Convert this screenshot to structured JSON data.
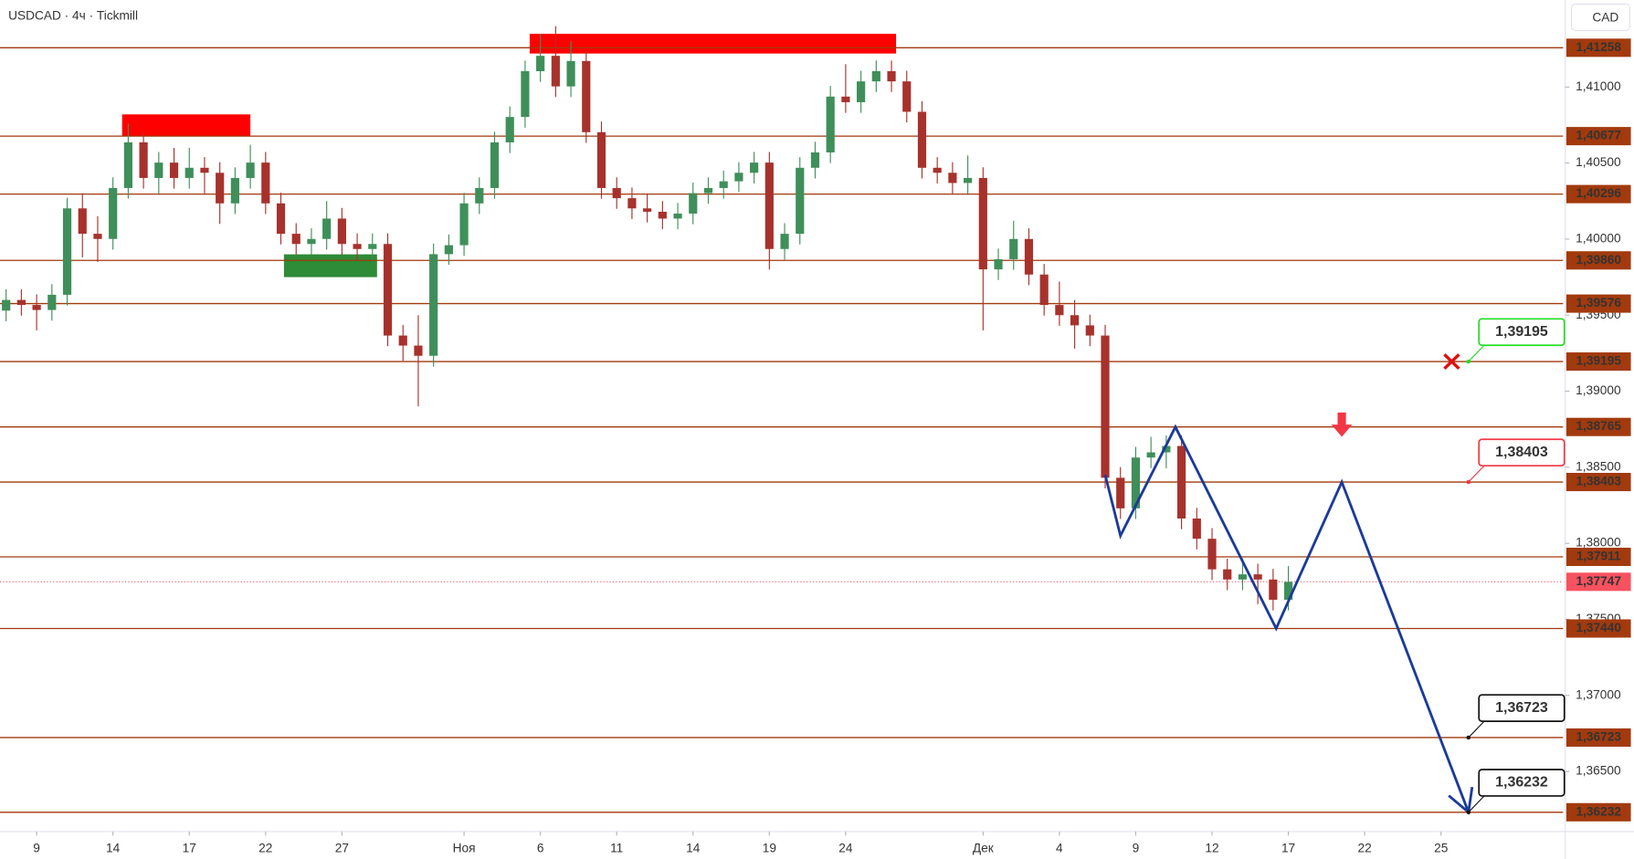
{
  "chart_data": {
    "type": "candlestick",
    "title": "USDCAD · 4ч · Tickmill",
    "currency": "CAD",
    "grid": false,
    "up_color": "#3f8f5a",
    "down_color": "#a7322c",
    "level_color": "#a23a0d",
    "xlim": [
      -0.4,
      102
    ],
    "ylim": [
      1.36105,
      1.41572
    ],
    "xticks": [
      {
        "value": 2,
        "label": "9"
      },
      {
        "value": 7,
        "label": "14"
      },
      {
        "value": 12,
        "label": "17"
      },
      {
        "value": 17,
        "label": "22"
      },
      {
        "value": 22,
        "label": "27"
      },
      {
        "value": 30,
        "label": "Ноя"
      },
      {
        "value": 35,
        "label": "6"
      },
      {
        "value": 40,
        "label": "11"
      },
      {
        "value": 45,
        "label": "14"
      },
      {
        "value": 50,
        "label": "19"
      },
      {
        "value": 55,
        "label": "24"
      },
      {
        "value": 64,
        "label": "Дек"
      },
      {
        "value": 69,
        "label": "4"
      },
      {
        "value": 74,
        "label": "9"
      },
      {
        "value": 79,
        "label": "12"
      },
      {
        "value": 84,
        "label": "17"
      },
      {
        "value": 89,
        "label": "22"
      },
      {
        "value": 94,
        "label": "25"
      }
    ],
    "yticks": [
      {
        "value": 1.365,
        "label": "1,36500"
      },
      {
        "value": 1.37,
        "label": "1,37000"
      },
      {
        "value": 1.375,
        "label": "1,37500"
      },
      {
        "value": 1.38,
        "label": "1,38000"
      },
      {
        "value": 1.385,
        "label": "1,38500"
      },
      {
        "value": 1.39,
        "label": "1,39000"
      },
      {
        "value": 1.395,
        "label": "1,39500"
      },
      {
        "value": 1.4,
        "label": "1,40000"
      },
      {
        "value": 1.405,
        "label": "1,40500"
      },
      {
        "value": 1.41,
        "label": "1,41000"
      }
    ],
    "open": [
      1.3953,
      1.396,
      1.39567,
      1.39534,
      1.39634,
      1.40202,
      1.40035,
      1.40001,
      1.40336,
      1.40636,
      1.40402,
      1.40503,
      1.40402,
      1.40469,
      1.40436,
      1.40235,
      1.40402,
      1.40503,
      1.40235,
      1.40035,
      1.39968,
      1.40001,
      1.40135,
      1.39968,
      1.39935,
      1.39968,
      1.39366,
      1.393,
      1.39233,
      1.39901,
      1.3996,
      1.40235,
      1.40336,
      1.40636,
      1.40803,
      1.41104,
      1.41205,
      1.41004,
      1.41171,
      1.40703,
      1.40336,
      1.40269,
      1.40202,
      1.4018,
      1.40135,
      1.40168,
      1.40302,
      1.40336,
      1.4038,
      1.40436,
      1.40503,
      1.39935,
      1.40035,
      1.40469,
      1.4057,
      1.40937,
      1.409,
      1.41037,
      1.41104,
      1.41037,
      1.40837,
      1.40469,
      1.40436,
      1.40369,
      1.40402,
      1.39801,
      1.39868,
      1.40001,
      1.39767,
      1.39567,
      1.395,
      1.39433,
      1.39366,
      1.38431,
      1.3823,
      1.38564,
      1.38598,
      1.3864,
      1.38163,
      1.3803,
      1.37829,
      1.37762,
      1.37796,
      1.37762,
      1.37629
    ],
    "high": [
      1.3967,
      1.3967,
      1.39637,
      1.39704,
      1.40272,
      1.40302,
      1.4015,
      1.40406,
      1.4076,
      1.40706,
      1.40573,
      1.406,
      1.406,
      1.40539,
      1.40506,
      1.40472,
      1.4062,
      1.40573,
      1.40305,
      1.40105,
      1.40071,
      1.4025,
      1.40205,
      1.40038,
      1.40038,
      1.40038,
      1.39436,
      1.395,
      1.39971,
      1.4003,
      1.40305,
      1.40406,
      1.40706,
      1.40873,
      1.41174,
      1.4135,
      1.414,
      1.413,
      1.41241,
      1.40773,
      1.40406,
      1.40339,
      1.403,
      1.4025,
      1.40238,
      1.40372,
      1.40406,
      1.4045,
      1.40506,
      1.40573,
      1.40573,
      1.40105,
      1.40539,
      1.4064,
      1.41007,
      1.4115,
      1.41107,
      1.41174,
      1.41174,
      1.41107,
      1.40907,
      1.40539,
      1.40506,
      1.4055,
      1.40472,
      1.39938,
      1.4012,
      1.40071,
      1.39837,
      1.3972,
      1.396,
      1.39503,
      1.39436,
      1.38501,
      1.38634,
      1.387,
      1.3871,
      1.3871,
      1.38233,
      1.381,
      1.37899,
      1.379,
      1.37866,
      1.37832,
      1.3785
    ],
    "low": [
      1.3946,
      1.39497,
      1.394,
      1.39464,
      1.39564,
      1.3988,
      1.3985,
      1.39931,
      1.40266,
      1.40332,
      1.403,
      1.40332,
      1.40332,
      1.403,
      1.401,
      1.40165,
      1.40332,
      1.40165,
      1.39965,
      1.39898,
      1.39898,
      1.39931,
      1.39898,
      1.39865,
      1.39865,
      1.39296,
      1.392,
      1.389,
      1.39163,
      1.39831,
      1.3989,
      1.40165,
      1.40266,
      1.40566,
      1.40733,
      1.41034,
      1.40934,
      1.40934,
      1.40633,
      1.40266,
      1.40199,
      1.40132,
      1.4011,
      1.40065,
      1.40065,
      1.40098,
      1.40232,
      1.40266,
      1.4031,
      1.40366,
      1.398,
      1.39865,
      1.39965,
      1.40399,
      1.405,
      1.4083,
      1.4083,
      1.40967,
      1.40967,
      1.40767,
      1.40399,
      1.40366,
      1.40299,
      1.40299,
      1.394,
      1.39731,
      1.39798,
      1.39697,
      1.39497,
      1.3943,
      1.3928,
      1.39296,
      1.38361,
      1.3816,
      1.3816,
      1.38494,
      1.38494,
      1.38093,
      1.3796,
      1.37759,
      1.37692,
      1.37692,
      1.376,
      1.37559,
      1.37559
    ],
    "close": [
      1.396,
      1.39567,
      1.39534,
      1.39634,
      1.40202,
      1.40035,
      1.40001,
      1.40336,
      1.40636,
      1.40402,
      1.40503,
      1.40402,
      1.40469,
      1.40436,
      1.40235,
      1.40402,
      1.40503,
      1.40235,
      1.40035,
      1.39968,
      1.40001,
      1.40135,
      1.39968,
      1.39935,
      1.39968,
      1.39366,
      1.393,
      1.39233,
      1.39901,
      1.3996,
      1.40235,
      1.40336,
      1.40636,
      1.40803,
      1.41104,
      1.41205,
      1.41004,
      1.41171,
      1.40703,
      1.40336,
      1.40269,
      1.40202,
      1.4018,
      1.40135,
      1.40168,
      1.40302,
      1.40336,
      1.4038,
      1.40436,
      1.40503,
      1.39935,
      1.40035,
      1.40469,
      1.4057,
      1.40937,
      1.409,
      1.41037,
      1.41104,
      1.41037,
      1.40837,
      1.40469,
      1.40436,
      1.40369,
      1.40402,
      1.39801,
      1.39868,
      1.40001,
      1.39767,
      1.39567,
      1.395,
      1.39433,
      1.39366,
      1.38431,
      1.3823,
      1.38564,
      1.38598,
      1.3864,
      1.38163,
      1.3803,
      1.37829,
      1.37762,
      1.37796,
      1.37762,
      1.37629,
      1.37747
    ],
    "levels": [
      {
        "value": 1.41258,
        "label": "1,41258"
      },
      {
        "value": 1.40677,
        "label": "1,40677"
      },
      {
        "value": 1.40296,
        "label": "1,40296"
      },
      {
        "value": 1.3986,
        "label": "1,39860"
      },
      {
        "value": 1.39576,
        "label": "1,39576"
      },
      {
        "value": 1.39195,
        "label": "1,39195"
      },
      {
        "value": 1.38765,
        "label": "1,38765"
      },
      {
        "value": 1.38403,
        "label": "1,38403"
      },
      {
        "value": 1.37911,
        "label": "1,37911"
      },
      {
        "value": 1.3744,
        "label": "1,37440"
      },
      {
        "value": 1.36723,
        "label": "1,36723"
      },
      {
        "value": 1.36232,
        "label": "1,36232"
      }
    ],
    "last_price": {
      "value": 1.37747,
      "label": "1,37747",
      "color": "#f7525f"
    },
    "zones": [
      {
        "x": [
          7.6,
          16
        ],
        "y": [
          1.4068,
          1.4082
        ],
        "color": "#ff0000"
      },
      {
        "x": [
          34.3,
          58.3
        ],
        "y": [
          1.4122,
          1.4135
        ],
        "color": "#ff0000"
      },
      {
        "x": [
          18.2,
          24.3
        ],
        "y": [
          1.3975,
          1.399
        ],
        "color": "#2e8b37"
      }
    ],
    "projection": {
      "x": [
        72,
        73,
        76.6,
        83.2,
        87.5,
        95.8
      ],
      "y": [
        1.3845,
        1.3805,
        1.38765,
        1.3744,
        1.38403,
        1.36232
      ],
      "color": "#1b3a9a"
    },
    "callouts": [
      {
        "x": 95.8,
        "value": 1.39195,
        "label": "1,39195",
        "color": "#22dd22"
      },
      {
        "x": 95.8,
        "value": 1.38403,
        "label": "1,38403",
        "color": "#f23645"
      },
      {
        "x": 95.8,
        "value": 1.36723,
        "label": "1,36723",
        "color": "#111111"
      },
      {
        "x": 95.8,
        "value": 1.36232,
        "label": "1,36232",
        "color": "#111111"
      }
    ],
    "cross": {
      "x": 94.7,
      "y": 1.39195,
      "color": "#e01010"
    },
    "arrow": {
      "x": 87.5,
      "y": 1.387,
      "color": "#f23645"
    }
  }
}
